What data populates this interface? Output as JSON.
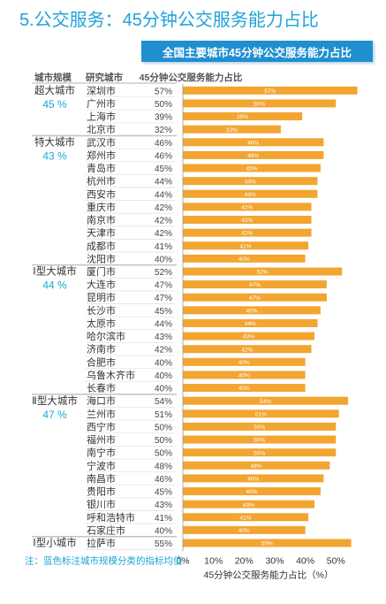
{
  "page": {
    "title": "5.公交服务：45分钟公交服务能力占比",
    "banner": "全国主要城市45分钟公交服务能力占比",
    "footnote": "注：蓝色标注城市规模分类的指标均值"
  },
  "colors": {
    "bar": "#f2a531",
    "accent": "#1fa3d8",
    "banner_bg": "#1f8fd0",
    "divider": "#b8c4d0",
    "text": "#333333",
    "grid": "#e3e3e3"
  },
  "chart_data": {
    "type": "bar",
    "orientation": "horizontal",
    "title": "",
    "header_group": "城市规模",
    "header_city": "研究城市",
    "header_value": "45分钟公交服务能力占比",
    "xlabel": "45分钟公交服务能力占比（%）",
    "xlim": [
      0,
      60
    ],
    "xticks": [
      "0%",
      "10%",
      "20%",
      "30%",
      "40%",
      "50%"
    ],
    "grid": false,
    "groups": [
      {
        "name": "超大城市",
        "mean": "45 %",
        "rows": [
          {
            "city": "深圳市",
            "value": 57,
            "label": "57%"
          },
          {
            "city": "广州市",
            "value": 50,
            "label": "50%"
          },
          {
            "city": "上海市",
            "value": 39,
            "label": "39%"
          },
          {
            "city": "北京市",
            "value": 32,
            "label": "32%"
          }
        ]
      },
      {
        "name": "特大城市",
        "mean": "43 %",
        "rows": [
          {
            "city": "武汉市",
            "value": 46,
            "label": "46%"
          },
          {
            "city": "郑州市",
            "value": 46,
            "label": "46%"
          },
          {
            "city": "青岛市",
            "value": 45,
            "label": "45%"
          },
          {
            "city": "杭州市",
            "value": 44,
            "label": "44%"
          },
          {
            "city": "西安市",
            "value": 44,
            "label": "44%"
          },
          {
            "city": "重庆市",
            "value": 42,
            "label": "42%"
          },
          {
            "city": "南京市",
            "value": 42,
            "label": "42%"
          },
          {
            "city": "天津市",
            "value": 42,
            "label": "42%"
          },
          {
            "city": "成都市",
            "value": 41,
            "label": "41%"
          },
          {
            "city": "沈阳市",
            "value": 40,
            "label": "40%"
          }
        ]
      },
      {
        "name": "Ⅰ型大城市",
        "mean": "44 %",
        "rows": [
          {
            "city": "厦门市",
            "value": 52,
            "label": "52%"
          },
          {
            "city": "大连市",
            "value": 47,
            "label": "47%"
          },
          {
            "city": "昆明市",
            "value": 47,
            "label": "47%"
          },
          {
            "city": "长沙市",
            "value": 45,
            "label": "45%"
          },
          {
            "city": "太原市",
            "value": 44,
            "label": "44%"
          },
          {
            "city": "哈尔滨市",
            "value": 43,
            "label": "43%"
          },
          {
            "city": "济南市",
            "value": 42,
            "label": "42%"
          },
          {
            "city": "合肥市",
            "value": 40,
            "label": "40%"
          },
          {
            "city": "乌鲁木齐市",
            "value": 40,
            "label": "40%"
          },
          {
            "city": "长春市",
            "value": 40,
            "label": "40%"
          }
        ]
      },
      {
        "name": "Ⅱ型大城市",
        "mean": "47 %",
        "rows": [
          {
            "city": "海口市",
            "value": 54,
            "label": "54%"
          },
          {
            "city": "兰州市",
            "value": 51,
            "label": "51%"
          },
          {
            "city": "西宁市",
            "value": 50,
            "label": "50%"
          },
          {
            "city": "福州市",
            "value": 50,
            "label": "50%"
          },
          {
            "city": "南宁市",
            "value": 50,
            "label": "50%"
          },
          {
            "city": "宁波市",
            "value": 48,
            "label": "48%"
          },
          {
            "city": "南昌市",
            "value": 46,
            "label": "46%"
          },
          {
            "city": "贵阳市",
            "value": 45,
            "label": "45%"
          },
          {
            "city": "银川市",
            "value": 43,
            "label": "43%"
          },
          {
            "city": "呼和浩特市",
            "value": 41,
            "label": "41%"
          },
          {
            "city": "石家庄市",
            "value": 40,
            "label": "40%"
          }
        ]
      },
      {
        "name": "Ⅰ型小城市",
        "mean": "",
        "rows": [
          {
            "city": "拉萨市",
            "value": 55,
            "label": "55%"
          }
        ]
      }
    ]
  }
}
